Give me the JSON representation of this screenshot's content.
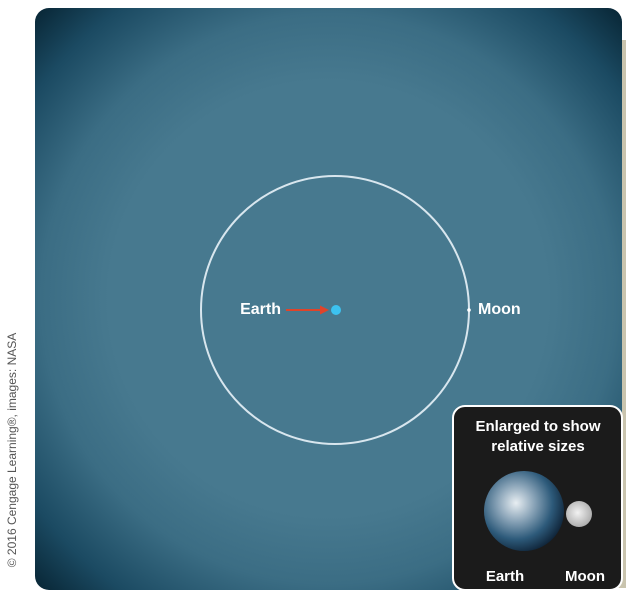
{
  "diagram": {
    "labels": {
      "earth": "Earth",
      "moon": "Moon"
    },
    "inset": {
      "title_lines": [
        "Enlarged to show",
        "relative sizes"
      ],
      "earth": "Earth",
      "moon": "Moon"
    },
    "credit": "© 2016 Cengage Learning®, images: NASA"
  }
}
